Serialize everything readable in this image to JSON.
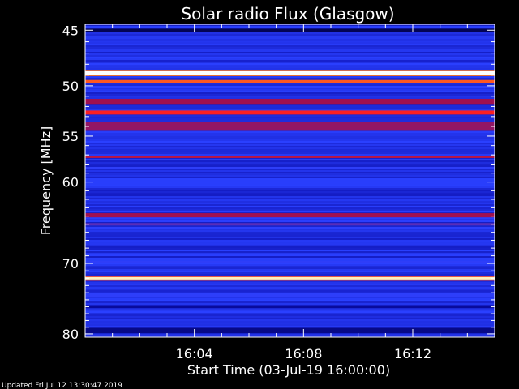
{
  "chart_data": {
    "type": "heatmap",
    "title": "Solar radio Flux (Glasgow)",
    "ylabel": "Frequency [MHz]",
    "xlabel": "Start Time (03-Jul-19 16:00:00)",
    "footer": "Updated Fri Jul 12 13:30:47 2019",
    "y_axis": {
      "scale": "log",
      "inverted": true,
      "range": [
        44.5,
        80.5
      ],
      "ticks": [
        45,
        50,
        55,
        60,
        70,
        80
      ],
      "tick_labels": [
        "45",
        "50",
        "55",
        "60",
        "70",
        "80"
      ]
    },
    "x_axis": {
      "range_minutes": [
        0,
        15
      ],
      "ticks": [
        4,
        8,
        12
      ],
      "tick_labels": [
        "16:04",
        "16:08",
        "16:12"
      ]
    },
    "colormap": [
      "#000030",
      "#0a0ca8",
      "#2a40ff",
      "#a01050",
      "#ff2020",
      "#ffd020",
      "#ffffff"
    ],
    "background_level": 0.28,
    "emission_bands": [
      {
        "freq_mhz": 45.0,
        "width_mhz": 0.25,
        "level": 0.05
      },
      {
        "freq_mhz": 48.8,
        "width_mhz": 0.35,
        "level": 1.0
      },
      {
        "freq_mhz": 49.6,
        "width_mhz": 0.3,
        "level": 0.72
      },
      {
        "freq_mhz": 51.5,
        "width_mhz": 0.5,
        "level": 0.5
      },
      {
        "freq_mhz": 52.6,
        "width_mhz": 0.4,
        "level": 0.66
      },
      {
        "freq_mhz": 54.0,
        "width_mhz": 0.9,
        "level": 0.48
      },
      {
        "freq_mhz": 57.2,
        "width_mhz": 0.25,
        "level": 0.55
      },
      {
        "freq_mhz": 63.9,
        "width_mhz": 0.5,
        "level": 0.5
      },
      {
        "freq_mhz": 65.0,
        "width_mhz": 0.3,
        "level": 0.4
      },
      {
        "freq_mhz": 72.0,
        "width_mhz": 0.35,
        "level": 0.95
      },
      {
        "freq_mhz": 76.0,
        "width_mhz": 0.4,
        "level": 0.15
      },
      {
        "freq_mhz": 79.5,
        "width_mhz": 0.8,
        "level": 0.12
      }
    ]
  }
}
